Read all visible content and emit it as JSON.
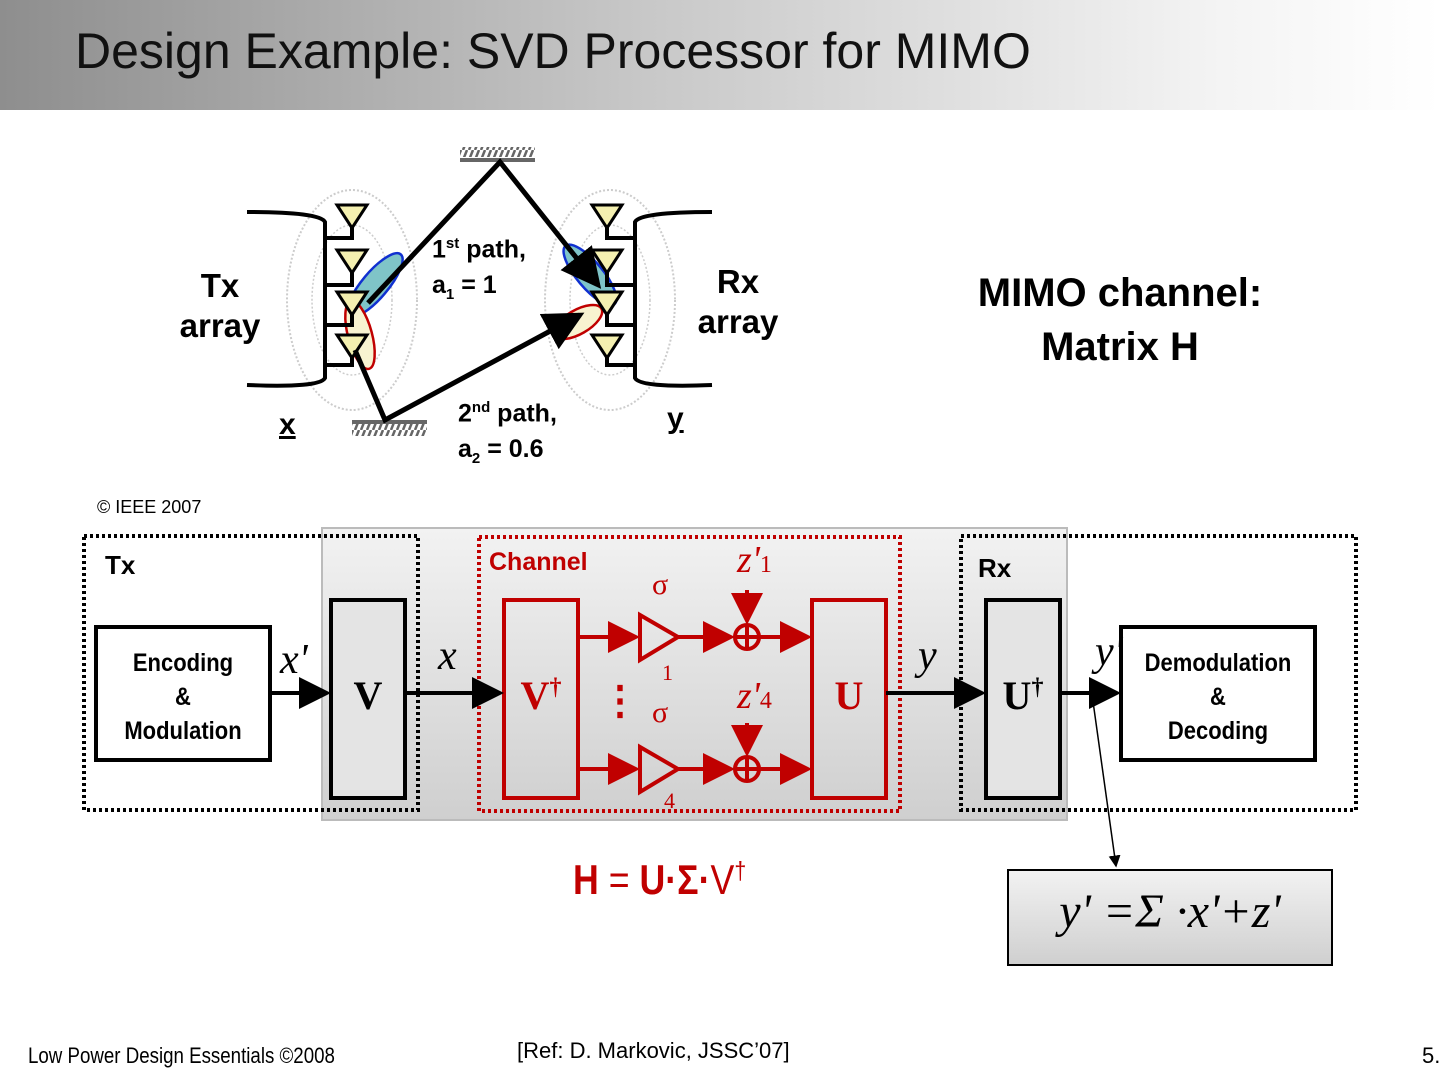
{
  "slide": {
    "title": "Design Example: SVD Processor for MIMO",
    "footer_left": "Low Power Design Essentials ©2008",
    "footer_ref": "[Ref: D. Markovic, JSSC’07]",
    "page_number": "5."
  },
  "channel_figure": {
    "tx_label_1": "Tx",
    "tx_label_2": "array",
    "rx_label_1": "Rx",
    "rx_label_2": "array",
    "path1_ordinal": "1",
    "path1_sup": "st",
    "path1_text": " path,",
    "path1_gain_sym": "a",
    "path1_gain_sub": "1",
    "path1_gain_val": " = 1",
    "path2_ordinal": "2",
    "path2_sup": "nd",
    "path2_text": " path,",
    "path2_gain_sym": "a",
    "path2_gain_sub": "2",
    "path2_gain_val": " = 0.6",
    "x_label": "x",
    "y_label": "y",
    "copyright": "© IEEE 2007"
  },
  "mimo": {
    "line1": "MIMO channel:",
    "line2": "Matrix H"
  },
  "block_diagram": {
    "tx_label": "Tx",
    "rx_label": "Rx",
    "channel_label": "Channel",
    "encoding": [
      "Encoding",
      "&",
      "Modulation"
    ],
    "demodulation": [
      "Demodulation",
      "&",
      "Decoding"
    ],
    "v_block": "V",
    "vdag_block": "V",
    "dagger": "†",
    "u_block": "U",
    "udag_block": "U",
    "sig_xp": "x'",
    "sig_x": "x",
    "sig_y": "y",
    "sig_yp": "y'",
    "z1": "z'",
    "z1_sub": "1",
    "z4": "z'",
    "z4_sub": "4",
    "sigma": "σ",
    "sigma1_sub": "1",
    "sigma4_sub": "4",
    "ellipsis": "⋮"
  },
  "equations": {
    "svd_H": "H",
    "svd_eq": " = ",
    "svd_U": "U",
    "svd_dot": "·",
    "svd_Sigma": "Σ",
    "svd_V": "V",
    "svd_dagger": "†",
    "model": "y' =Σ ·x'+z'"
  },
  "colors": {
    "red": "#c00000",
    "antenna_fill": "#f4f0b0",
    "beam_fill": "#7fc4c8"
  }
}
